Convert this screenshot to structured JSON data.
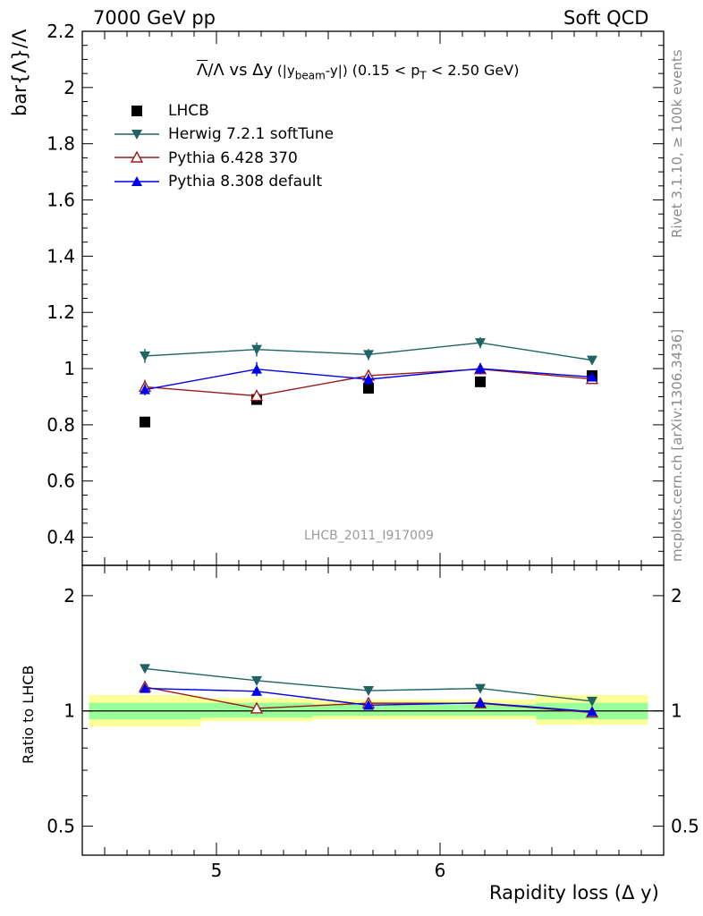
{
  "header": {
    "left": "7000 GeV pp",
    "right": "Soft QCD"
  },
  "side_labels": {
    "rivet": "Rivet 3.1.10, ≥ 100k events",
    "mcplots": "mcplots.cern.ch [arXiv:1306.3436]"
  },
  "watermark": "LHCB_2011_I917009",
  "title": {
    "bar_lambda": "Λ",
    "over_lambda": "/Λ vs Δy",
    "paren_pre": " (|y",
    "paren_sub": "beam",
    "paren_post": "-y|)",
    "range_pre": " (0.15 < p",
    "range_sub": "T",
    "range_post": " < 2.50 GeV)"
  },
  "colors": {
    "data": "#000000",
    "herwig": "#1f6363",
    "pythia6": "#991a1a",
    "pythia8": "#0000ee",
    "band_inner": "#99ff99",
    "band_outer": "#ffff99"
  },
  "chart_data": [
    {
      "type": "scatter",
      "panel": "main",
      "ylabel": "bar{Λ}/Λ",
      "ylim": [
        0.3,
        2.2
      ],
      "yticks": [
        "0.4",
        "0.6",
        "0.8",
        "1",
        "1.2",
        "1.4",
        "1.6",
        "1.8",
        "2",
        "2.2"
      ],
      "xlim": [
        4.4,
        7.0
      ],
      "legend_position": "top-left",
      "series": [
        {
          "name": "LHCB",
          "marker": "square",
          "x": [
            4.68,
            5.18,
            5.68,
            6.18,
            6.68
          ],
          "y": [
            0.81,
            0.89,
            0.93,
            0.953,
            0.975
          ]
        },
        {
          "name": "Herwig 7.2.1 softTune",
          "marker": "triangle-down",
          "x": [
            4.68,
            5.18,
            5.68,
            6.18,
            6.68
          ],
          "y": [
            1.045,
            1.068,
            1.05,
            1.092,
            1.03
          ],
          "err": [
            0.025,
            0.025,
            0.02,
            0.02,
            0.015
          ]
        },
        {
          "name": "Pythia 6.428 370",
          "marker": "triangle-up-open",
          "x": [
            4.68,
            5.18,
            5.68,
            6.18,
            6.68
          ],
          "y": [
            0.935,
            0.903,
            0.975,
            0.998,
            0.963
          ],
          "err": [
            0.025,
            0.02,
            0.02,
            0.015,
            0.015
          ]
        },
        {
          "name": "Pythia 8.308 default",
          "marker": "triangle-up",
          "x": [
            4.68,
            5.18,
            5.68,
            6.18,
            6.68
          ],
          "y": [
            0.925,
            0.998,
            0.962,
            1.0,
            0.97
          ],
          "err": [
            0.02,
            0.025,
            0.02,
            0.02,
            0.015
          ]
        }
      ]
    },
    {
      "type": "line",
      "panel": "ratio",
      "ylabel": "Ratio to LHCB",
      "xlabel": "Rapidity loss (Δ y)",
      "ylim": [
        0.42,
        2.4
      ],
      "yscale": "log",
      "yticks": [
        "0.5",
        "1",
        "2"
      ],
      "xlim": [
        4.4,
        7.0
      ],
      "xticks": [
        "5",
        "6"
      ],
      "bands": {
        "edges": [
          4.43,
          4.93,
          5.43,
          5.93,
          6.43,
          6.93
        ],
        "inner": [
          [
            0.95,
            1.05
          ],
          [
            0.96,
            1.05
          ],
          [
            0.97,
            1.04
          ],
          [
            0.97,
            1.04
          ],
          [
            0.95,
            1.05
          ]
        ],
        "outer": [
          [
            0.91,
            1.1
          ],
          [
            0.94,
            1.08
          ],
          [
            0.95,
            1.07
          ],
          [
            0.95,
            1.07
          ],
          [
            0.92,
            1.1
          ]
        ]
      },
      "series": [
        {
          "name": "Herwig 7.2.1 softTune",
          "marker": "triangle-down",
          "x": [
            4.68,
            5.18,
            5.68,
            6.18,
            6.68
          ],
          "y": [
            1.29,
            1.2,
            1.13,
            1.145,
            1.06
          ]
        },
        {
          "name": "Pythia 6.428 370",
          "marker": "triangle-up-open",
          "x": [
            4.68,
            5.18,
            5.68,
            6.18,
            6.68
          ],
          "y": [
            1.155,
            1.015,
            1.048,
            1.047,
            0.99
          ]
        },
        {
          "name": "Pythia 8.308 default",
          "marker": "triangle-up",
          "x": [
            4.68,
            5.18,
            5.68,
            6.18,
            6.68
          ],
          "y": [
            1.145,
            1.125,
            1.035,
            1.05,
            0.995
          ]
        }
      ]
    }
  ]
}
